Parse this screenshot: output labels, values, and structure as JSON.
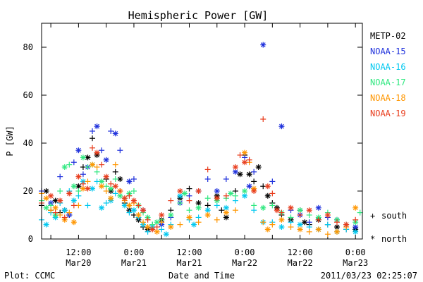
{
  "chart_data": {
    "type": "scatter",
    "title": "Hemispheric Power [GW]",
    "xlabel": "Date and Time",
    "ylabel": "P [GW]",
    "ylim": [
      0,
      90
    ],
    "xlim_hours": [
      -20,
      49.5
    ],
    "y_ticks": [
      0,
      20,
      40,
      60,
      80
    ],
    "x_ticks": [
      {
        "hours": -12,
        "time": "12:00",
        "date": "Mar20"
      },
      {
        "hours": 0,
        "time": "0:00",
        "date": "Mar21"
      },
      {
        "hours": 12,
        "time": "12:00",
        "date": "Mar21"
      },
      {
        "hours": 24,
        "time": "0:00",
        "date": "Mar22"
      },
      {
        "hours": 36,
        "time": "12:00",
        "date": "Mar22"
      },
      {
        "hours": 48,
        "time": "0:00",
        "date": "Mar23"
      }
    ],
    "legend_placement": "right",
    "series": [
      {
        "name": "METP-02",
        "color": "#000000",
        "points": [
          [
            -20,
            14
          ],
          [
            -19,
            20
          ],
          [
            -18,
            12
          ],
          [
            -17,
            16
          ],
          [
            -16,
            11
          ],
          [
            -15,
            12
          ],
          [
            -14,
            10
          ],
          [
            -12,
            22
          ],
          [
            -11,
            30
          ],
          [
            -10,
            34
          ],
          [
            -9,
            42
          ],
          [
            -8,
            35
          ],
          [
            -6,
            25
          ],
          [
            -5,
            20
          ],
          [
            -4,
            28
          ],
          [
            -3,
            25
          ],
          [
            -2,
            15
          ],
          [
            -1,
            12
          ],
          [
            0,
            10
          ],
          [
            1,
            8
          ],
          [
            2,
            5
          ],
          [
            3,
            4
          ],
          [
            4,
            6
          ],
          [
            6,
            8
          ],
          [
            8,
            12
          ],
          [
            10,
            17
          ],
          [
            12,
            21
          ],
          [
            14,
            15
          ],
          [
            16,
            14
          ],
          [
            18,
            18
          ],
          [
            19,
            12
          ],
          [
            20,
            9
          ],
          [
            22,
            20
          ],
          [
            23,
            27
          ],
          [
            24,
            35
          ],
          [
            25,
            27
          ],
          [
            26,
            24
          ],
          [
            27,
            30
          ],
          [
            28,
            22
          ],
          [
            29,
            18
          ],
          [
            30,
            15
          ],
          [
            31,
            13
          ],
          [
            32,
            10
          ],
          [
            34,
            8
          ],
          [
            36,
            12
          ],
          [
            37,
            7
          ],
          [
            38,
            6
          ],
          [
            40,
            8
          ],
          [
            42,
            6
          ],
          [
            44,
            5
          ],
          [
            46,
            4
          ],
          [
            48,
            4
          ]
        ]
      },
      {
        "name": "NOAA-15",
        "color": "#1e30dc",
        "points": [
          [
            -20,
            20
          ],
          [
            -18,
            15
          ],
          [
            -16,
            26
          ],
          [
            -14,
            10
          ],
          [
            -13,
            32
          ],
          [
            -12,
            37
          ],
          [
            -11,
            27
          ],
          [
            -10,
            30
          ],
          [
            -9,
            45
          ],
          [
            -8,
            47
          ],
          [
            -7,
            37
          ],
          [
            -6,
            33
          ],
          [
            -5,
            45
          ],
          [
            -4,
            44
          ],
          [
            -3,
            37
          ],
          [
            -1,
            24
          ],
          [
            0,
            25
          ],
          [
            2,
            12
          ],
          [
            4,
            5
          ],
          [
            6,
            6
          ],
          [
            8,
            9
          ],
          [
            10,
            15
          ],
          [
            12,
            18
          ],
          [
            14,
            20
          ],
          [
            16,
            25
          ],
          [
            18,
            20
          ],
          [
            20,
            25
          ],
          [
            22,
            28
          ],
          [
            24,
            34
          ],
          [
            25,
            22
          ],
          [
            26,
            28
          ],
          [
            28,
            81
          ],
          [
            30,
            24
          ],
          [
            32,
            47
          ],
          [
            34,
            12
          ],
          [
            36,
            10
          ],
          [
            38,
            7
          ],
          [
            40,
            13
          ],
          [
            42,
            9
          ],
          [
            44,
            8
          ],
          [
            46,
            6
          ],
          [
            48,
            5
          ]
        ]
      },
      {
        "name": "NOAA-16",
        "color": "#00c8f0",
        "points": [
          [
            -20,
            8
          ],
          [
            -19,
            6
          ],
          [
            -18,
            11
          ],
          [
            -17,
            9
          ],
          [
            -16,
            15
          ],
          [
            -15,
            12
          ],
          [
            -14,
            20
          ],
          [
            -13,
            16
          ],
          [
            -12,
            18
          ],
          [
            -11,
            24
          ],
          [
            -10,
            14
          ],
          [
            -9,
            21
          ],
          [
            -8,
            24
          ],
          [
            -7,
            13
          ],
          [
            -6,
            15
          ],
          [
            -5,
            16
          ],
          [
            -4,
            19
          ],
          [
            -2,
            14
          ],
          [
            -1,
            11
          ],
          [
            0,
            12
          ],
          [
            1,
            9
          ],
          [
            2,
            6
          ],
          [
            3,
            3
          ],
          [
            4,
            5
          ],
          [
            6,
            4
          ],
          [
            7,
            2
          ],
          [
            8,
            6
          ],
          [
            10,
            18
          ],
          [
            12,
            8
          ],
          [
            13,
            6
          ],
          [
            14,
            9
          ],
          [
            16,
            12
          ],
          [
            18,
            14
          ],
          [
            20,
            13
          ],
          [
            22,
            16
          ],
          [
            24,
            18
          ],
          [
            26,
            12
          ],
          [
            28,
            7
          ],
          [
            30,
            7
          ],
          [
            32,
            5
          ],
          [
            34,
            7
          ],
          [
            36,
            6
          ],
          [
            38,
            5
          ],
          [
            40,
            4
          ],
          [
            42,
            6
          ],
          [
            44,
            3
          ],
          [
            46,
            4
          ],
          [
            48,
            3
          ]
        ]
      },
      {
        "name": "NOAA-17",
        "color": "#30e880",
        "points": [
          [
            -20,
            16
          ],
          [
            -19,
            13
          ],
          [
            -18,
            14
          ],
          [
            -17,
            10
          ],
          [
            -16,
            20
          ],
          [
            -15,
            30
          ],
          [
            -14,
            31
          ],
          [
            -13,
            22
          ],
          [
            -12,
            20
          ],
          [
            -11,
            34
          ],
          [
            -10,
            30
          ],
          [
            -9,
            31
          ],
          [
            -8,
            28
          ],
          [
            -7,
            24
          ],
          [
            -6,
            22
          ],
          [
            -5,
            21
          ],
          [
            -4,
            25
          ],
          [
            -3,
            18
          ],
          [
            -2,
            17
          ],
          [
            -1,
            19
          ],
          [
            0,
            20
          ],
          [
            1,
            14
          ],
          [
            2,
            11
          ],
          [
            3,
            9
          ],
          [
            4,
            6
          ],
          [
            5,
            7
          ],
          [
            6,
            8
          ],
          [
            8,
            10
          ],
          [
            10,
            15
          ],
          [
            11,
            19
          ],
          [
            12,
            12
          ],
          [
            14,
            13
          ],
          [
            16,
            17
          ],
          [
            18,
            16
          ],
          [
            20,
            17
          ],
          [
            21,
            19
          ],
          [
            22,
            18
          ],
          [
            24,
            20
          ],
          [
            26,
            14
          ],
          [
            28,
            13
          ],
          [
            30,
            14
          ],
          [
            32,
            11
          ],
          [
            34,
            9
          ],
          [
            36,
            12
          ],
          [
            38,
            10
          ],
          [
            40,
            9
          ],
          [
            42,
            11
          ],
          [
            44,
            8
          ],
          [
            46,
            6
          ],
          [
            48,
            7
          ],
          [
            49,
            11
          ]
        ]
      },
      {
        "name": "NOAA-18",
        "color": "#ff9600",
        "points": [
          [
            -20,
            19
          ],
          [
            -19,
            17
          ],
          [
            -18,
            12
          ],
          [
            -17,
            13
          ],
          [
            -16,
            10
          ],
          [
            -15,
            8
          ],
          [
            -14,
            11
          ],
          [
            -13,
            7
          ],
          [
            -12,
            14
          ],
          [
            -11,
            21
          ],
          [
            -10,
            24
          ],
          [
            -9,
            31
          ],
          [
            -8,
            30
          ],
          [
            -7,
            22
          ],
          [
            -6,
            20
          ],
          [
            -5,
            17
          ],
          [
            -4,
            31
          ],
          [
            -3,
            20
          ],
          [
            -2,
            16
          ],
          [
            -1,
            14
          ],
          [
            0,
            15
          ],
          [
            1,
            10
          ],
          [
            2,
            7
          ],
          [
            3,
            5
          ],
          [
            4,
            4
          ],
          [
            5,
            3
          ],
          [
            6,
            7
          ],
          [
            8,
            5
          ],
          [
            10,
            6
          ],
          [
            12,
            9
          ],
          [
            14,
            7
          ],
          [
            16,
            10
          ],
          [
            18,
            8
          ],
          [
            20,
            11
          ],
          [
            22,
            12
          ],
          [
            24,
            36
          ],
          [
            25,
            32
          ],
          [
            26,
            21
          ],
          [
            28,
            7
          ],
          [
            29,
            4
          ],
          [
            30,
            6
          ],
          [
            32,
            8
          ],
          [
            34,
            5
          ],
          [
            36,
            4
          ],
          [
            38,
            3
          ],
          [
            40,
            4
          ],
          [
            42,
            2
          ],
          [
            44,
            3
          ],
          [
            46,
            5
          ],
          [
            48,
            13
          ]
        ]
      },
      {
        "name": "NOAA-19",
        "color": "#e83c1c",
        "points": [
          [
            -20,
            15
          ],
          [
            -18,
            18
          ],
          [
            -17,
            11
          ],
          [
            -16,
            16
          ],
          [
            -15,
            9
          ],
          [
            -14,
            19
          ],
          [
            -13,
            14
          ],
          [
            -12,
            26
          ],
          [
            -11,
            23
          ],
          [
            -10,
            21
          ],
          [
            -9,
            38
          ],
          [
            -8,
            36
          ],
          [
            -7,
            31
          ],
          [
            -6,
            26
          ],
          [
            -5,
            23
          ],
          [
            -4,
            22
          ],
          [
            -3,
            20
          ],
          [
            -2,
            17
          ],
          [
            -1,
            18
          ],
          [
            0,
            16
          ],
          [
            1,
            14
          ],
          [
            2,
            12
          ],
          [
            3,
            8
          ],
          [
            4,
            4
          ],
          [
            5,
            5
          ],
          [
            6,
            10
          ],
          [
            8,
            16
          ],
          [
            10,
            20
          ],
          [
            12,
            16
          ],
          [
            14,
            20
          ],
          [
            16,
            29
          ],
          [
            18,
            17
          ],
          [
            20,
            18
          ],
          [
            22,
            30
          ],
          [
            23,
            35
          ],
          [
            24,
            32
          ],
          [
            25,
            33
          ],
          [
            26,
            20
          ],
          [
            28,
            50
          ],
          [
            29,
            22
          ],
          [
            30,
            19
          ],
          [
            31,
            12
          ],
          [
            32,
            11
          ],
          [
            34,
            13
          ],
          [
            36,
            10
          ],
          [
            38,
            12
          ],
          [
            40,
            8
          ],
          [
            42,
            10
          ],
          [
            44,
            7
          ],
          [
            46,
            6
          ],
          [
            48,
            8
          ]
        ]
      }
    ]
  },
  "legend": {
    "items": [
      "METP-02",
      "NOAA-15",
      "NOAA-16",
      "NOAA-17",
      "NOAA-18",
      "NOAA-19"
    ],
    "colors": [
      "#000000",
      "#1e30dc",
      "#00c8f0",
      "#30e880",
      "#ff9600",
      "#e83c1c"
    ]
  },
  "symbols": {
    "south_label": "south",
    "north_label": "north",
    "south_symbol": "+",
    "north_symbol": "*"
  },
  "footer": {
    "credit": "Plot: CCMC",
    "timestamp": "2011/03/23 02:25:07"
  }
}
